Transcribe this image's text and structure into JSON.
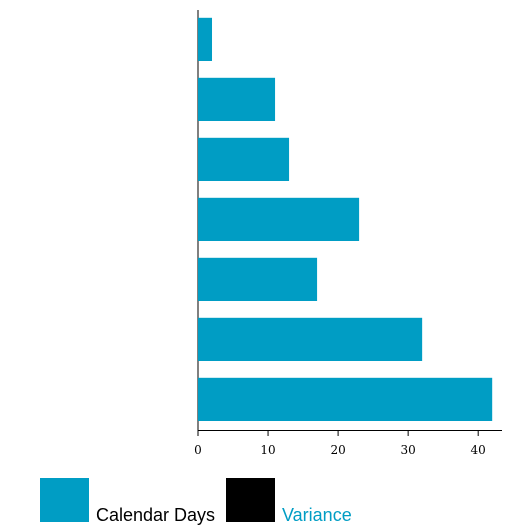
{
  "chart_data": {
    "type": "bar",
    "orientation": "horizontal",
    "categories": [
      null,
      null,
      null,
      null,
      null,
      null,
      null
    ],
    "series": [
      {
        "name": "Calendar Days",
        "color": "#009dc4",
        "values": [
          2,
          11,
          13,
          23,
          17,
          32,
          42
        ]
      },
      {
        "name": "Variance",
        "color": "#000000",
        "values": [
          0,
          0,
          0,
          0,
          0,
          0,
          0
        ]
      }
    ],
    "xlim": [
      0,
      43.4
    ],
    "xticks": [
      0,
      10,
      20,
      30,
      40
    ],
    "grid": false
  }
}
